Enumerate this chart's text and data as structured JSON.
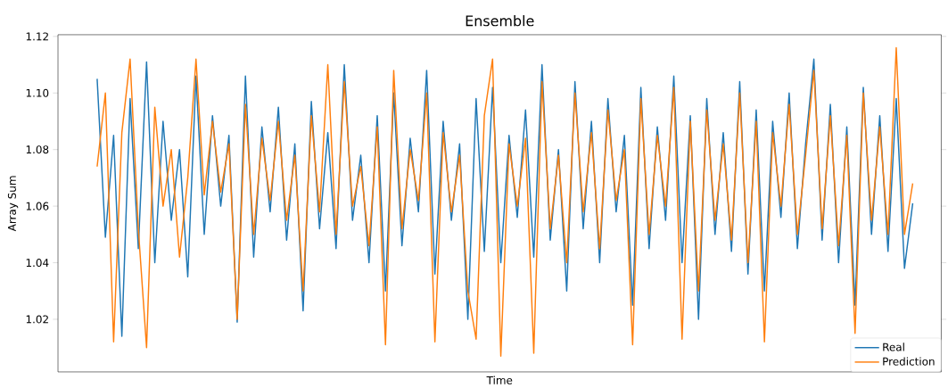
{
  "chart_data": {
    "type": "line",
    "title": "Ensemble",
    "xlabel": "Time",
    "ylabel": "Array Sum",
    "categories": [
      null,
      null,
      null,
      null,
      null,
      null,
      null,
      null,
      null,
      null,
      null,
      null,
      null,
      null,
      null,
      null,
      null,
      null,
      null,
      null,
      null,
      null,
      null,
      null,
      null,
      null,
      null,
      null,
      null,
      null,
      null,
      null,
      null,
      null,
      null,
      null,
      null,
      null,
      null,
      null,
      null,
      null,
      null,
      null,
      null,
      null,
      null,
      null,
      null,
      null,
      null,
      null,
      null,
      null,
      null,
      null,
      null,
      null,
      null,
      null,
      null,
      null,
      null,
      null,
      null,
      null,
      null,
      null,
      null,
      null,
      null,
      null,
      null,
      null,
      null,
      null,
      null,
      null,
      null,
      null,
      null,
      null,
      null,
      null,
      null,
      null,
      null,
      null,
      null,
      null,
      null,
      null,
      null,
      null,
      null,
      null,
      null,
      null,
      null,
      null
    ],
    "series": [
      {
        "name": "Real",
        "color": "#1f77b4",
        "values": [
          1.105,
          1.049,
          1.085,
          1.014,
          1.098,
          1.045,
          1.111,
          1.04,
          1.09,
          1.055,
          1.08,
          1.035,
          1.106,
          1.05,
          1.092,
          1.06,
          1.085,
          1.019,
          1.106,
          1.042,
          1.088,
          1.058,
          1.095,
          1.048,
          1.082,
          1.023,
          1.097,
          1.052,
          1.086,
          1.045,
          1.11,
          1.055,
          1.078,
          1.04,
          1.092,
          1.03,
          1.1,
          1.046,
          1.084,
          1.058,
          1.108,
          1.036,
          1.09,
          1.055,
          1.082,
          1.02,
          1.098,
          1.044,
          1.102,
          1.04,
          1.085,
          1.056,
          1.094,
          1.042,
          1.11,
          1.048,
          1.08,
          1.03,
          1.104,
          1.052,
          1.09,
          1.04,
          1.098,
          1.058,
          1.085,
          1.025,
          1.102,
          1.045,
          1.088,
          1.055,
          1.106,
          1.04,
          1.092,
          1.02,
          1.098,
          1.05,
          1.086,
          1.044,
          1.104,
          1.036,
          1.094,
          1.03,
          1.09,
          1.056,
          1.1,
          1.045,
          1.082,
          1.112,
          1.048,
          1.096,
          1.04,
          1.088,
          1.025,
          1.102,
          1.05,
          1.092,
          1.044,
          1.098,
          1.038,
          1.061
        ]
      },
      {
        "name": "Prediction",
        "color": "#ff7f0e",
        "values": [
          1.074,
          1.1,
          1.012,
          1.086,
          1.112,
          1.052,
          1.01,
          1.095,
          1.06,
          1.08,
          1.042,
          1.07,
          1.112,
          1.064,
          1.09,
          1.065,
          1.082,
          1.02,
          1.096,
          1.05,
          1.084,
          1.062,
          1.09,
          1.055,
          1.078,
          1.03,
          1.092,
          1.058,
          1.11,
          1.05,
          1.104,
          1.06,
          1.074,
          1.046,
          1.088,
          1.011,
          1.108,
          1.052,
          1.08,
          1.062,
          1.1,
          1.012,
          1.086,
          1.058,
          1.078,
          1.03,
          1.013,
          1.092,
          1.112,
          1.007,
          1.082,
          1.06,
          1.084,
          1.008,
          1.104,
          1.052,
          1.078,
          1.04,
          1.1,
          1.058,
          1.086,
          1.045,
          1.094,
          1.062,
          1.08,
          1.011,
          1.098,
          1.05,
          1.085,
          1.06,
          1.102,
          1.013,
          1.09,
          1.03,
          1.094,
          1.055,
          1.082,
          1.048,
          1.1,
          1.04,
          1.09,
          1.012,
          1.086,
          1.06,
          1.096,
          1.05,
          1.078,
          1.108,
          1.052,
          1.092,
          1.046,
          1.085,
          1.015,
          1.1,
          1.055,
          1.088,
          1.05,
          1.116,
          1.05,
          1.068
        ]
      }
    ],
    "ylim": [
      1.0014,
      1.1206
    ],
    "yticks": [
      {
        "value": 1.02,
        "label": "1.02"
      },
      {
        "value": 1.04,
        "label": "1.04"
      },
      {
        "value": 1.06,
        "label": "1.06"
      },
      {
        "value": 1.08,
        "label": "1.08"
      },
      {
        "value": 1.1,
        "label": "1.10"
      },
      {
        "value": 1.12,
        "label": "1.12"
      }
    ],
    "legend": "bottom right",
    "tick_labels": "y"
  }
}
